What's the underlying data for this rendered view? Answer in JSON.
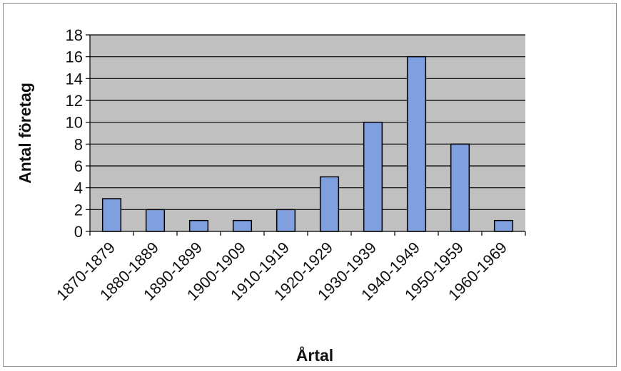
{
  "chart_data": {
    "type": "bar",
    "title": "",
    "xlabel": "Årtal",
    "ylabel": "Antal företag",
    "categories": [
      "1870-1879",
      "1880-1889",
      "1890-1899",
      "1900-1909",
      "1910-1919",
      "1920-1929",
      "1930-1939",
      "1940-1949",
      "1950-1959",
      "1960-1969"
    ],
    "values": [
      3,
      2,
      1,
      1,
      2,
      5,
      10,
      16,
      8,
      1
    ],
    "ylim": [
      0,
      18
    ],
    "yticks": [
      0,
      2,
      4,
      6,
      8,
      10,
      12,
      14,
      16,
      18
    ],
    "grid": true,
    "legend": "none",
    "colors": {
      "bar_fill": "#7f9fdf",
      "bar_stroke": "#000000",
      "plot_background": "#c0c0c0",
      "gridline": "#000000"
    }
  }
}
